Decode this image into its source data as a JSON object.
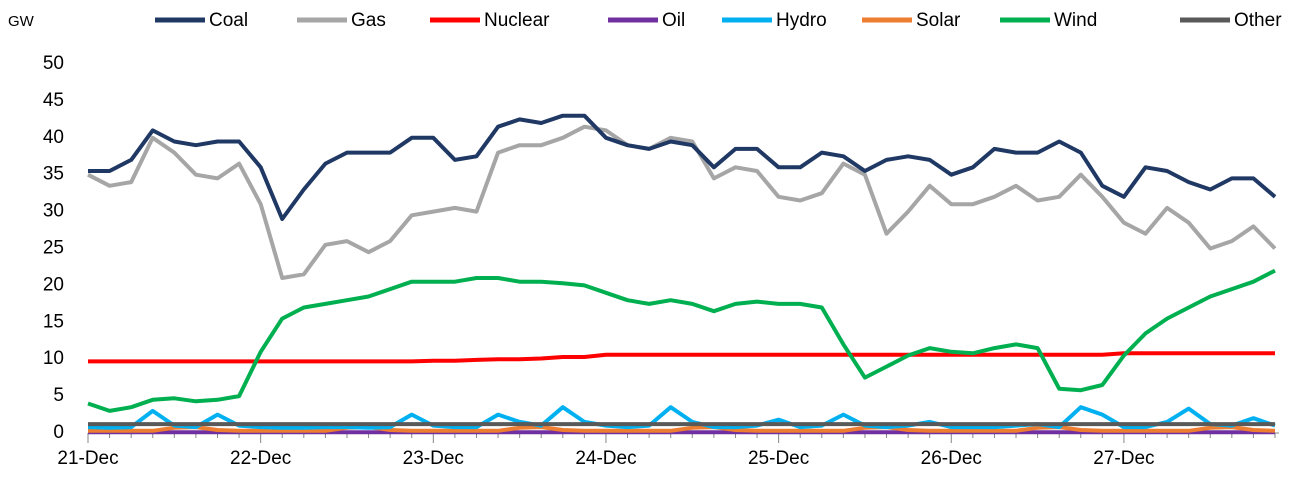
{
  "chart_data": {
    "type": "line",
    "y_label": "GW",
    "categories": [
      "21-Dec",
      null,
      null,
      null,
      null,
      null,
      null,
      null,
      "22-Dec",
      null,
      null,
      null,
      null,
      null,
      null,
      null,
      "23-Dec",
      null,
      null,
      null,
      null,
      null,
      null,
      null,
      "24-Dec",
      null,
      null,
      null,
      null,
      null,
      null,
      null,
      "25-Dec",
      null,
      null,
      null,
      null,
      null,
      null,
      null,
      "26-Dec",
      null,
      null,
      null,
      null,
      null,
      null,
      null,
      "27-Dec",
      null,
      null,
      null,
      null,
      null,
      null,
      null
    ],
    "ylim": [
      0,
      50
    ],
    "yticks": [
      0,
      5,
      10,
      15,
      20,
      25,
      30,
      35,
      40,
      45,
      50
    ],
    "legend": "top",
    "series": [
      {
        "name": "Coal",
        "color": "#1f3864",
        "values": [
          35.5,
          35.5,
          37,
          41,
          39.5,
          39,
          39.5,
          39.5,
          36,
          29,
          33,
          36.5,
          38,
          38,
          38,
          40,
          40,
          37,
          37.5,
          41.5,
          42.5,
          42,
          43,
          43,
          40,
          39,
          38.5,
          39.5,
          39,
          36,
          38.5,
          38.5,
          36,
          36,
          38,
          37.5,
          35.5,
          37,
          37.5,
          37,
          35,
          36,
          38.5,
          38,
          38,
          39.5,
          38,
          33.5,
          32,
          36,
          35.5,
          34,
          33,
          34.5,
          34.5,
          32
        ]
      },
      {
        "name": "Gas",
        "color": "#a6a6a6",
        "values": [
          35,
          33.5,
          34,
          40,
          38,
          35,
          34.5,
          36.5,
          31,
          21,
          21.5,
          25.5,
          26,
          24.5,
          26,
          29.5,
          30,
          30.5,
          30,
          38,
          39,
          39,
          40,
          41.5,
          41,
          39,
          38.5,
          40,
          39.5,
          34.5,
          36,
          35.5,
          32,
          31.5,
          32.5,
          36.5,
          35,
          27,
          30,
          33.5,
          31,
          31,
          32,
          33.5,
          31.5,
          32,
          35,
          32,
          28.5,
          27,
          30.5,
          28.5,
          25,
          26,
          28,
          25
        ]
      },
      {
        "name": "Nuclear",
        "color": "#ff0000",
        "values": [
          9.7,
          9.7,
          9.7,
          9.7,
          9.7,
          9.7,
          9.7,
          9.7,
          9.7,
          9.7,
          9.7,
          9.7,
          9.7,
          9.7,
          9.7,
          9.7,
          9.8,
          9.8,
          9.9,
          10,
          10,
          10.1,
          10.3,
          10.3,
          10.6,
          10.6,
          10.6,
          10.6,
          10.6,
          10.6,
          10.6,
          10.6,
          10.6,
          10.6,
          10.6,
          10.6,
          10.6,
          10.6,
          10.6,
          10.6,
          10.6,
          10.6,
          10.6,
          10.6,
          10.6,
          10.6,
          10.6,
          10.6,
          10.8,
          10.8,
          10.8,
          10.8,
          10.8,
          10.8,
          10.8,
          10.8
        ]
      },
      {
        "name": "Oil",
        "color": "#7030a0",
        "values": [
          0.1,
          0.1,
          0.1,
          0.1,
          0.1,
          0.1,
          0.1,
          0.1,
          0.1,
          0.1,
          0.1,
          0.1,
          0.1,
          0.1,
          0.1,
          0.1,
          0.1,
          0.1,
          0.1,
          0.1,
          0.1,
          0.1,
          0.1,
          0.1,
          0.1,
          0.1,
          0.1,
          0.1,
          0.1,
          0.1,
          0.1,
          0.1,
          0.1,
          0.1,
          0.1,
          0.1,
          0.1,
          0.1,
          0.1,
          0.1,
          0.1,
          0.1,
          0.1,
          0.1,
          0.1,
          0.1,
          0.1,
          0.1,
          0.1,
          0.1,
          0.1,
          0.1,
          0.1,
          0.1,
          0.1,
          0.1
        ]
      },
      {
        "name": "Hydro",
        "color": "#00b0f0",
        "values": [
          0.8,
          0.7,
          0.8,
          3,
          1,
          0.8,
          2.5,
          1,
          0.8,
          0.7,
          0.7,
          0.8,
          0.8,
          0.7,
          0.8,
          2.5,
          1,
          0.8,
          0.8,
          2.5,
          1.5,
          1,
          3.5,
          1.5,
          1,
          0.8,
          1,
          3.5,
          1.5,
          0.8,
          0.8,
          1,
          1.8,
          0.8,
          1,
          2.5,
          1,
          0.8,
          1,
          1.5,
          0.8,
          0.8,
          0.8,
          1,
          1.2,
          0.8,
          3.5,
          2.5,
          0.8,
          0.8,
          1.5,
          3.3,
          1.2,
          1,
          2,
          1
        ]
      },
      {
        "name": "Solar",
        "color": "#ed7d31",
        "values": [
          0.3,
          0.3,
          0.3,
          0.3,
          0.7,
          0.8,
          0.4,
          0.3,
          0.3,
          0.3,
          0.3,
          0.3,
          0.7,
          0.8,
          0.4,
          0.3,
          0.3,
          0.3,
          0.3,
          0.3,
          0.7,
          0.8,
          0.4,
          0.3,
          0.3,
          0.3,
          0.3,
          0.3,
          0.7,
          0.8,
          0.4,
          0.3,
          0.3,
          0.3,
          0.3,
          0.3,
          0.7,
          0.8,
          0.4,
          0.3,
          0.3,
          0.3,
          0.3,
          0.3,
          0.7,
          0.8,
          0.4,
          0.3,
          0.3,
          0.3,
          0.3,
          0.3,
          0.7,
          0.8,
          0.4,
          0.3
        ]
      },
      {
        "name": "Wind",
        "color": "#00b050",
        "values": [
          4,
          3,
          3.5,
          4.5,
          4.7,
          4.3,
          4.5,
          5,
          11,
          15.5,
          17,
          17.5,
          18,
          18.5,
          19.5,
          20.5,
          20.5,
          20.5,
          21,
          21,
          20.5,
          20.5,
          20.3,
          20,
          19,
          18,
          17.5,
          18,
          17.5,
          16.5,
          17.5,
          17.8,
          17.5,
          17.5,
          17,
          12,
          7.5,
          9,
          10.5,
          11.5,
          11,
          10.8,
          11.5,
          12,
          11.5,
          6,
          5.8,
          6.5,
          10.5,
          13.5,
          15.5,
          17,
          18.5,
          19.5,
          20.5,
          22
        ]
      },
      {
        "name": "Other",
        "color": "#595959",
        "values": [
          1.2,
          1.2,
          1.2,
          1.2,
          1.2,
          1.2,
          1.2,
          1.2,
          1.2,
          1.2,
          1.2,
          1.2,
          1.2,
          1.2,
          1.2,
          1.2,
          1.2,
          1.2,
          1.2,
          1.2,
          1.2,
          1.2,
          1.2,
          1.2,
          1.2,
          1.2,
          1.2,
          1.2,
          1.2,
          1.2,
          1.2,
          1.2,
          1.2,
          1.2,
          1.2,
          1.2,
          1.2,
          1.2,
          1.2,
          1.2,
          1.2,
          1.2,
          1.2,
          1.2,
          1.2,
          1.2,
          1.2,
          1.2,
          1.2,
          1.2,
          1.2,
          1.2,
          1.2,
          1.2,
          1.2,
          1.2
        ]
      }
    ]
  }
}
